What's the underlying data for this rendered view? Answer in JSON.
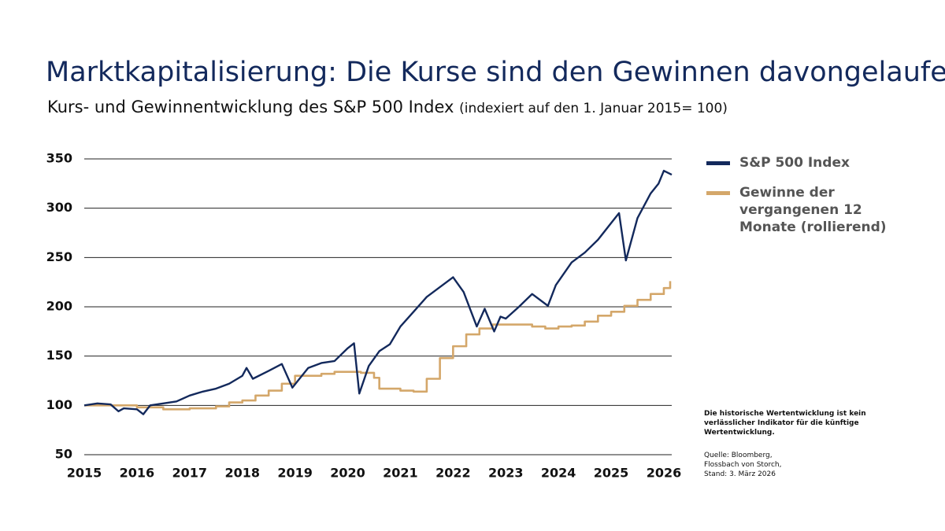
{
  "chart_data": {
    "type": "line",
    "title": "Marktkapitalisierung: Die Kurse sind den Gewinnen davongelaufen",
    "subtitle": "Kurs- und Gewinnentwicklung des S&P 500 Index",
    "subtitle_note": "(indexiert auf den 1. Januar 2015= 100)",
    "xlim": [
      2015,
      2026.15
    ],
    "xticks": [
      2015,
      2016,
      2017,
      2018,
      2019,
      2020,
      2021,
      2022,
      2023,
      2024,
      2025,
      2026
    ],
    "ylim": [
      50,
      350
    ],
    "yticks": [
      50,
      100,
      150,
      200,
      250,
      300,
      350
    ],
    "grid": true,
    "legend": "right",
    "series": [
      {
        "name": "S&P 500 Index",
        "color": "#13295c",
        "step": false,
        "x": [
          2015,
          2015.25,
          2015.5,
          2015.65,
          2015.75,
          2016,
          2016.12,
          2016.25,
          2016.5,
          2016.75,
          2017,
          2017.25,
          2017.5,
          2017.75,
          2018,
          2018.08,
          2018.2,
          2018.5,
          2018.75,
          2018.95,
          2019.25,
          2019.5,
          2019.75,
          2020,
          2020.12,
          2020.22,
          2020.4,
          2020.6,
          2020.8,
          2021,
          2021.25,
          2021.5,
          2021.75,
          2022,
          2022.2,
          2022.45,
          2022.6,
          2022.78,
          2022.9,
          2023,
          2023.25,
          2023.5,
          2023.8,
          2023.95,
          2024.25,
          2024.5,
          2024.75,
          2025,
          2025.15,
          2025.28,
          2025.5,
          2025.75,
          2025.9,
          2026,
          2026.15
        ],
        "values": [
          100,
          102,
          101,
          94,
          97,
          96,
          91,
          100,
          102,
          104,
          110,
          114,
          117,
          122,
          130,
          138,
          127,
          135,
          142,
          118,
          138,
          143,
          145,
          158,
          163,
          112,
          140,
          155,
          162,
          180,
          195,
          210,
          220,
          230,
          215,
          180,
          198,
          175,
          190,
          188,
          200,
          213,
          201,
          222,
          245,
          255,
          268,
          285,
          295,
          247,
          290,
          315,
          325,
          338,
          334
        ]
      },
      {
        "name": "Gewinne der vergangenen 12 Monate (rollierend)",
        "color": "#d4a76a",
        "step": true,
        "x": [
          2015,
          2016,
          2016.5,
          2017,
          2017.5,
          2017.75,
          2018,
          2018.25,
          2018.5,
          2018.75,
          2019,
          2019.5,
          2019.75,
          2020.25,
          2020.5,
          2020.6,
          2021,
          2021.25,
          2021.5,
          2021.75,
          2022,
          2022.25,
          2022.5,
          2022.75,
          2023,
          2023.5,
          2023.75,
          2024,
          2024.25,
          2024.5,
          2024.75,
          2025,
          2025.25,
          2025.5,
          2025.75,
          2026,
          2026.12
        ],
        "values": [
          100,
          98,
          96,
          97,
          99,
          103,
          105,
          110,
          115,
          122,
          130,
          132,
          134,
          133,
          128,
          117,
          115,
          114,
          127,
          148,
          160,
          172,
          178,
          182,
          182,
          180,
          178,
          180,
          181,
          185,
          191,
          195,
          201,
          207,
          213,
          219,
          226
        ]
      }
    ],
    "disclaimer": "Die historische Wertentwicklung ist kein verlässlicher Indikator für die künftige Wertentwicklung.",
    "source": [
      "Quelle: Bloomberg,",
      "Flossbach von Storch,",
      "Stand: 3. März 2026"
    ]
  }
}
